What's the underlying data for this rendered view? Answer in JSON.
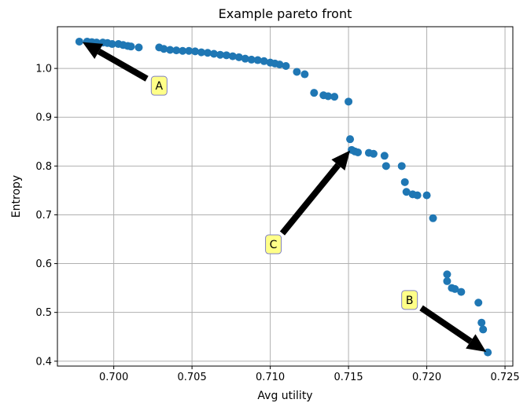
{
  "chart_data": {
    "type": "scatter",
    "title": "Example pareto front",
    "xlabel": "Avg utility",
    "ylabel": "Entropy",
    "xlim": [
      0.6964,
      0.7255
    ],
    "ylim": [
      0.39,
      1.0855
    ],
    "xticks": [
      0.7,
      0.705,
      0.71,
      0.715,
      0.72,
      0.725
    ],
    "xtick_labels": [
      "0.700",
      "0.705",
      "0.710",
      "0.715",
      "0.720",
      "0.725"
    ],
    "yticks": [
      0.4,
      0.5,
      0.6,
      0.7,
      0.8,
      0.9,
      1.0
    ],
    "ytick_labels": [
      "0.4",
      "0.5",
      "0.6",
      "0.7",
      "0.8",
      "0.9",
      "1.0"
    ],
    "grid": true,
    "point_color": "#1f77b4",
    "series": [
      {
        "x": [
          0.6978,
          0.6983,
          0.6986,
          0.6989,
          0.6993,
          0.6996,
          0.6999,
          0.7003,
          0.7006,
          0.7009,
          0.7011,
          0.7016,
          0.7029,
          0.7032,
          0.7036,
          0.704,
          0.7044,
          0.7048,
          0.7052,
          0.7056,
          0.706,
          0.7064,
          0.7068,
          0.7072,
          0.7076,
          0.708,
          0.7084,
          0.7088,
          0.7092,
          0.7096,
          0.71,
          0.7103,
          0.7106,
          0.711,
          0.7117,
          0.7122,
          0.7128,
          0.7134,
          0.7137,
          0.7141,
          0.715,
          0.7151,
          0.7152,
          0.7154,
          0.7156,
          0.7163,
          0.7166,
          0.7173,
          0.7174,
          0.7184,
          0.7186,
          0.7187,
          0.7191,
          0.7194,
          0.72,
          0.7204,
          0.7213,
          0.7213,
          0.7216,
          0.7218,
          0.7222,
          0.7233,
          0.7235,
          0.7236,
          0.7239
        ],
        "y": [
          1.055,
          1.055,
          1.054,
          1.053,
          1.053,
          1.052,
          1.05,
          1.05,
          1.048,
          1.046,
          1.045,
          1.043,
          1.043,
          1.04,
          1.038,
          1.037,
          1.036,
          1.036,
          1.035,
          1.033,
          1.032,
          1.03,
          1.028,
          1.027,
          1.025,
          1.023,
          1.02,
          1.018,
          1.017,
          1.015,
          1.012,
          1.01,
          1.008,
          1.005,
          0.993,
          0.988,
          0.95,
          0.945,
          0.943,
          0.942,
          0.932,
          0.855,
          0.833,
          0.83,
          0.828,
          0.827,
          0.825,
          0.821,
          0.8,
          0.8,
          0.767,
          0.747,
          0.742,
          0.74,
          0.74,
          0.693,
          0.578,
          0.564,
          0.55,
          0.548,
          0.542,
          0.52,
          0.479,
          0.465,
          0.418
        ]
      }
    ],
    "annotations": [
      {
        "label": "A",
        "text_xy": [
          0.7029,
          0.9645
        ],
        "point_xy": [
          0.698,
          1.054
        ]
      },
      {
        "label": "B",
        "text_xy": [
          0.7189,
          0.5255
        ],
        "point_xy": [
          0.7238,
          0.419
        ]
      },
      {
        "label": "C",
        "text_xy": [
          0.7102,
          0.6395
        ],
        "point_xy": [
          0.7151,
          0.832
        ]
      }
    ],
    "annotation_box_fill": "#ffff88",
    "annotation_box_stroke": "#8080c0"
  }
}
